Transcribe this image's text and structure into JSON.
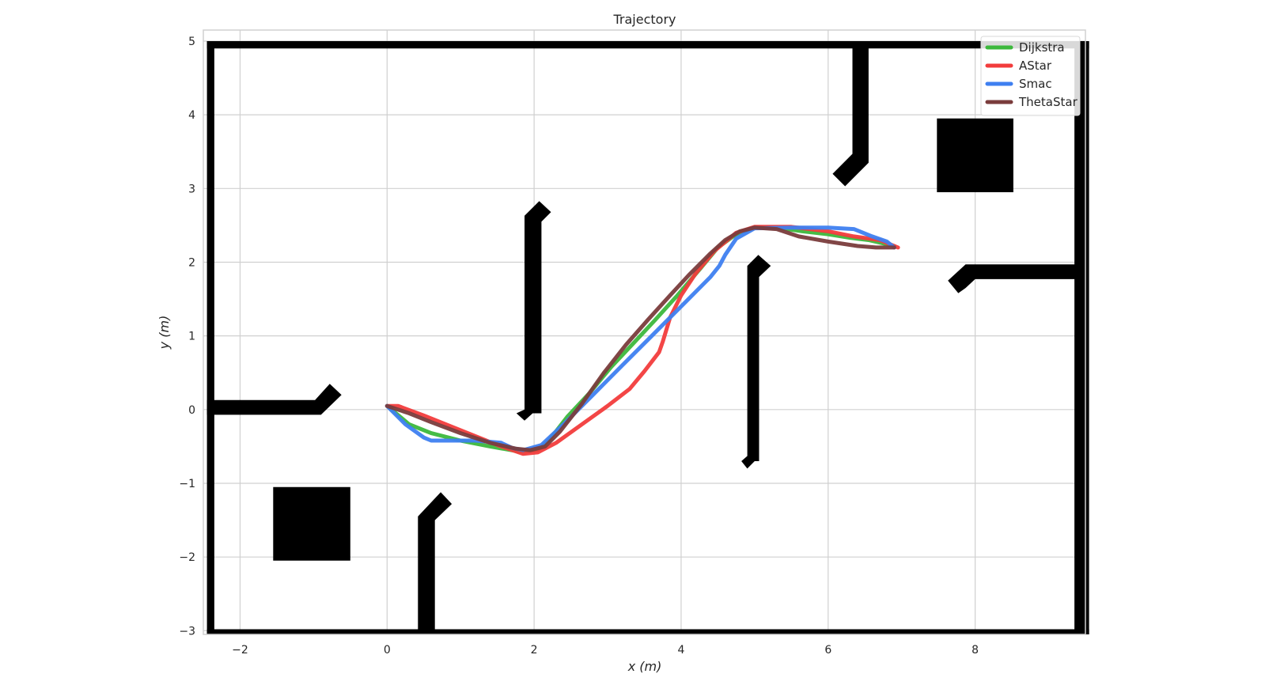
{
  "chart_data": {
    "type": "line",
    "title": "Trajectory",
    "xlabel": "x (m)",
    "ylabel": "y (m)",
    "xlim": [
      -2.5,
      9.5
    ],
    "ylim": [
      -3.05,
      5.15
    ],
    "xticks": [
      -2,
      0,
      2,
      4,
      6,
      8
    ],
    "xtick_labels": [
      "−2",
      "0",
      "2",
      "4",
      "6",
      "8"
    ],
    "yticks": [
      -3,
      -2,
      -1,
      0,
      1,
      2,
      3,
      4,
      5
    ],
    "ytick_labels": [
      "−3",
      "−2",
      "−1",
      "0",
      "1",
      "2",
      "3",
      "4",
      "5"
    ],
    "grid": true,
    "legend_position": "upper right",
    "obstacles": [
      [
        [
          -2.45,
          -3.05
        ],
        [
          -2.35,
          -3.05
        ],
        [
          -2.35,
          5.0
        ],
        [
          -2.45,
          5.0
        ]
      ],
      [
        [
          -2.45,
          4.9
        ],
        [
          9.55,
          4.9
        ],
        [
          9.55,
          5.0
        ],
        [
          -2.45,
          5.0
        ]
      ],
      [
        [
          9.35,
          -3.05
        ],
        [
          9.55,
          -3.05
        ],
        [
          9.55,
          5.0
        ],
        [
          9.35,
          5.0
        ]
      ],
      [
        [
          -2.45,
          -3.05
        ],
        [
          9.55,
          -3.05
        ],
        [
          9.55,
          -2.98
        ],
        [
          -2.45,
          -2.98
        ]
      ],
      [
        [
          -2.45,
          -0.07
        ],
        [
          -0.9,
          -0.07
        ],
        [
          -0.62,
          0.2
        ],
        [
          -0.78,
          0.35
        ],
        [
          -0.98,
          0.13
        ],
        [
          -2.45,
          0.13
        ]
      ],
      [
        [
          -1.55,
          -2.05
        ],
        [
          -0.5,
          -2.05
        ],
        [
          -0.5,
          -1.05
        ],
        [
          -1.55,
          -1.05
        ]
      ],
      [
        [
          0.42,
          -3.05
        ],
        [
          0.65,
          -3.05
        ],
        [
          0.65,
          -1.5
        ],
        [
          0.88,
          -1.28
        ],
        [
          0.73,
          -1.12
        ],
        [
          0.42,
          -1.45
        ]
      ],
      [
        [
          1.87,
          -0.15
        ],
        [
          1.98,
          -0.05
        ],
        [
          2.1,
          -0.05
        ],
        [
          2.1,
          2.55
        ],
        [
          2.23,
          2.68
        ],
        [
          2.07,
          2.83
        ],
        [
          1.87,
          2.63
        ],
        [
          1.87,
          0.0
        ],
        [
          1.76,
          -0.05
        ]
      ],
      [
        [
          4.9,
          -0.8
        ],
        [
          5.0,
          -0.7
        ],
        [
          5.06,
          -0.7
        ],
        [
          5.06,
          1.8
        ],
        [
          5.22,
          1.95
        ],
        [
          5.05,
          2.1
        ],
        [
          4.9,
          1.95
        ],
        [
          4.9,
          -0.63
        ],
        [
          4.82,
          -0.7
        ]
      ],
      [
        [
          6.33,
          4.95
        ],
        [
          6.55,
          4.95
        ],
        [
          6.55,
          3.35
        ],
        [
          6.23,
          3.03
        ],
        [
          6.06,
          3.2
        ],
        [
          6.33,
          3.47
        ]
      ],
      [
        [
          7.48,
          2.95
        ],
        [
          8.52,
          2.95
        ],
        [
          8.52,
          3.95
        ],
        [
          7.48,
          3.95
        ]
      ],
      [
        [
          7.87,
          1.65
        ],
        [
          7.77,
          1.58
        ],
        [
          7.63,
          1.75
        ],
        [
          7.87,
          1.97
        ],
        [
          9.45,
          1.97
        ],
        [
          9.45,
          1.77
        ],
        [
          8.0,
          1.77
        ]
      ]
    ],
    "series": [
      {
        "name": "Dijkstra",
        "color": "#3cb83c",
        "x": [
          0.0,
          0.3,
          0.6,
          1.0,
          1.4,
          1.8,
          2.05,
          2.2,
          2.45,
          2.75,
          3.05,
          3.35,
          3.65,
          3.95,
          4.25,
          4.5,
          4.75,
          5.0,
          5.3,
          5.65,
          6.0,
          6.3,
          6.55,
          6.9
        ],
        "y": [
          0.05,
          -0.2,
          -0.32,
          -0.42,
          -0.5,
          -0.57,
          -0.55,
          -0.42,
          -0.1,
          0.22,
          0.58,
          0.9,
          1.22,
          1.55,
          1.9,
          2.2,
          2.38,
          2.47,
          2.47,
          2.42,
          2.38,
          2.33,
          2.3,
          2.22
        ]
      },
      {
        "name": "AStar",
        "color": "#f23c3c",
        "x": [
          0.0,
          0.15,
          0.5,
          1.0,
          1.5,
          1.85,
          2.05,
          2.3,
          2.65,
          3.0,
          3.3,
          3.5,
          3.7,
          3.75,
          3.85,
          4.0,
          4.2,
          4.45,
          4.75,
          5.0,
          5.5,
          6.0,
          6.35,
          6.7,
          6.95
        ],
        "y": [
          0.05,
          0.05,
          -0.08,
          -0.28,
          -0.48,
          -0.6,
          -0.58,
          -0.45,
          -0.2,
          0.05,
          0.28,
          0.52,
          0.78,
          0.92,
          1.25,
          1.55,
          1.85,
          2.15,
          2.4,
          2.48,
          2.48,
          2.42,
          2.35,
          2.3,
          2.2
        ]
      },
      {
        "name": "Smac",
        "color": "#3e7ff0",
        "x": [
          0.0,
          0.25,
          0.5,
          0.6,
          1.2,
          1.55,
          1.7,
          1.85,
          2.1,
          2.4,
          2.8,
          3.2,
          3.6,
          4.0,
          4.4,
          4.52,
          4.6,
          4.75,
          5.0,
          5.5,
          6.0,
          6.35,
          6.6,
          6.8,
          6.9
        ],
        "y": [
          0.05,
          -0.2,
          -0.38,
          -0.42,
          -0.42,
          -0.45,
          -0.52,
          -0.55,
          -0.48,
          -0.2,
          0.2,
          0.6,
          1.0,
          1.4,
          1.8,
          1.95,
          2.1,
          2.32,
          2.46,
          2.47,
          2.47,
          2.45,
          2.35,
          2.28,
          2.2
        ]
      },
      {
        "name": "ThetaStar",
        "color": "#7a3c3c",
        "x": [
          0.0,
          0.3,
          0.6,
          1.0,
          1.4,
          1.75,
          1.95,
          2.15,
          2.35,
          2.65,
          2.95,
          3.25,
          3.55,
          3.85,
          4.1,
          4.4,
          4.6,
          4.8,
          5.0,
          5.3,
          5.6,
          6.0,
          6.4,
          6.65,
          6.9
        ],
        "y": [
          0.05,
          -0.05,
          -0.17,
          -0.32,
          -0.45,
          -0.53,
          -0.55,
          -0.5,
          -0.3,
          0.08,
          0.5,
          0.88,
          1.22,
          1.55,
          1.82,
          2.12,
          2.3,
          2.42,
          2.47,
          2.45,
          2.35,
          2.28,
          2.22,
          2.2,
          2.2
        ]
      }
    ]
  }
}
